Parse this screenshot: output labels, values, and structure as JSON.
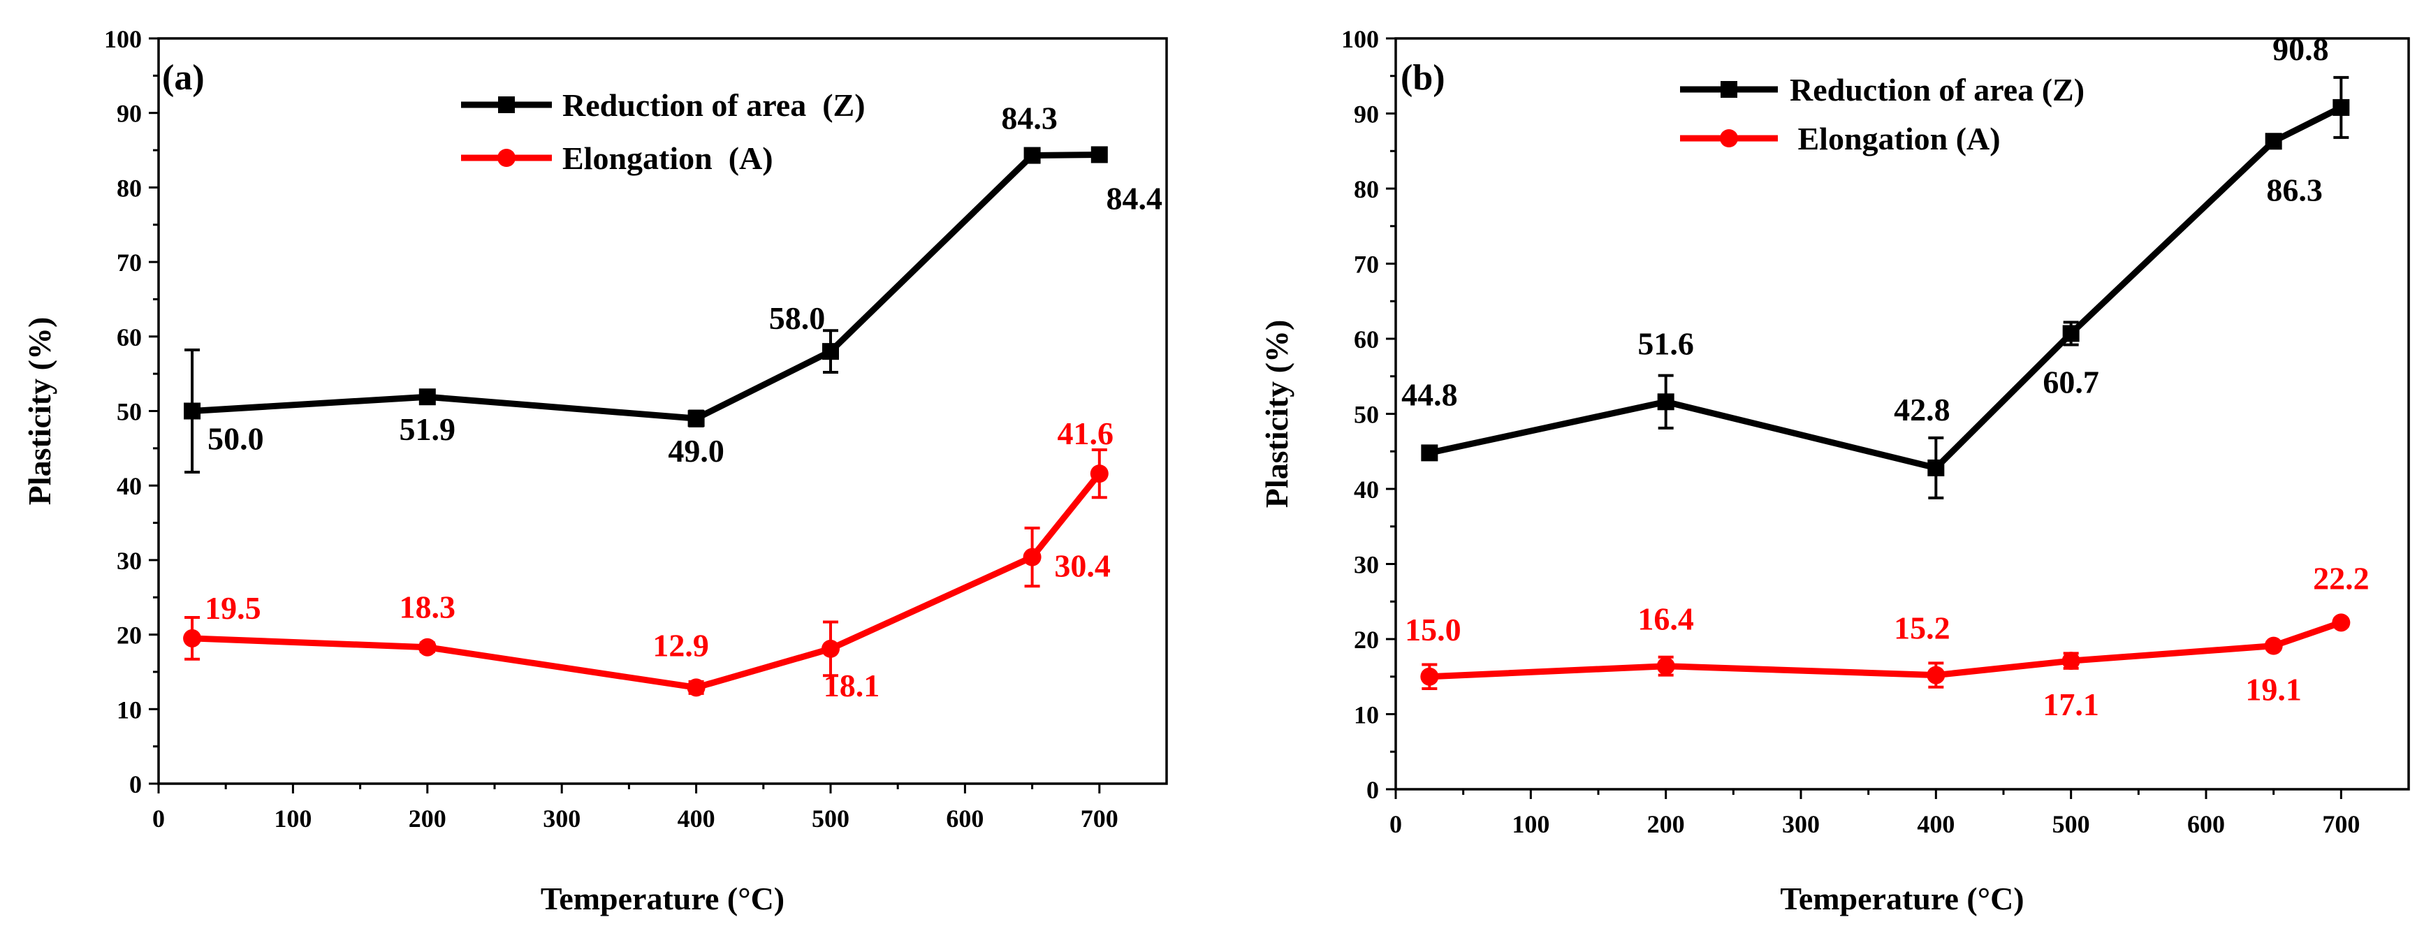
{
  "chart_data": [
    {
      "type": "line",
      "panel_label": "(a)",
      "xlabel": "Temperature (°C)",
      "ylabel": "Plasticity (%)",
      "xlim": [
        0,
        750
      ],
      "ylim": [
        0,
        100
      ],
      "x_ticks": [
        0,
        100,
        200,
        300,
        400,
        500,
        600,
        700
      ],
      "y_ticks": [
        0,
        10,
        20,
        30,
        40,
        50,
        60,
        70,
        80,
        90,
        100
      ],
      "legend_position": "top-right",
      "series": [
        {
          "name": "Reduction of area  (Z)",
          "color": "#000000",
          "marker": "square",
          "x": [
            25,
            200,
            400,
            500,
            650,
            700
          ],
          "values": [
            50.0,
            51.9,
            49.0,
            58.0,
            84.3,
            84.4
          ],
          "errors": [
            8.2,
            0.6,
            1.0,
            2.8,
            0.8,
            0.6
          ],
          "labels": [
            "50.0",
            "51.9",
            "49.0",
            "58.0",
            "84.3",
            "84.4"
          ]
        },
        {
          "name": "Elongation  (A)",
          "color": "#ff0000",
          "marker": "circle",
          "x": [
            25,
            200,
            400,
            500,
            650,
            700
          ],
          "values": [
            19.5,
            18.3,
            12.9,
            18.1,
            30.4,
            41.6
          ],
          "errors": [
            2.8,
            0.6,
            0.8,
            3.6,
            3.9,
            3.2
          ],
          "labels": [
            "19.5",
            "18.3",
            "12.9",
            "18.1",
            "30.4",
            "41.6"
          ]
        }
      ]
    },
    {
      "type": "line",
      "panel_label": "(b)",
      "xlabel": "Temperature (°C)",
      "ylabel": "Plasticity (%)",
      "xlim": [
        0,
        750
      ],
      "ylim": [
        0,
        100
      ],
      "x_ticks": [
        0,
        100,
        200,
        300,
        400,
        500,
        600,
        700
      ],
      "y_ticks": [
        0,
        10,
        20,
        30,
        40,
        50,
        60,
        70,
        80,
        90,
        100
      ],
      "legend_position": "top-right",
      "series": [
        {
          "name": "Reduction of area (Z)",
          "color": "#000000",
          "marker": "square",
          "x": [
            25,
            200,
            400,
            500,
            650,
            700
          ],
          "values": [
            44.8,
            51.6,
            42.8,
            60.7,
            86.3,
            90.8
          ],
          "errors": [
            0.6,
            3.5,
            4.0,
            1.5,
            0.8,
            4.0
          ],
          "labels": [
            "44.8",
            "51.6",
            "42.8",
            "60.7",
            "86.3",
            "90.8"
          ]
        },
        {
          "name": " Elongation (A)",
          "color": "#ff0000",
          "marker": "circle",
          "x": [
            25,
            200,
            400,
            500,
            650,
            700
          ],
          "values": [
            15.0,
            16.4,
            15.2,
            17.1,
            19.1,
            22.2
          ],
          "errors": [
            1.6,
            1.2,
            1.6,
            1.0,
            0.5,
            0.5
          ],
          "labels": [
            "15.0",
            "16.4",
            "15.2",
            "17.1",
            "19.1",
            "22.2"
          ]
        }
      ]
    }
  ]
}
